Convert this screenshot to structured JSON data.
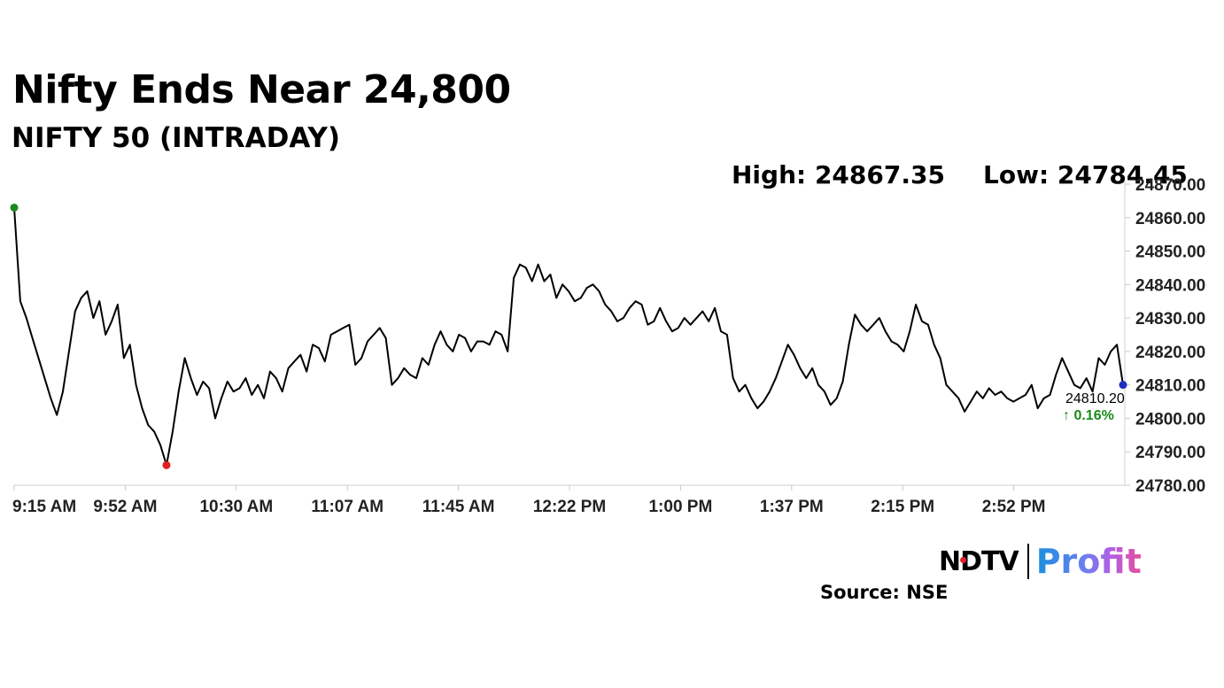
{
  "header": {
    "title": "Nifty Ends Near 24,800",
    "subtitle": "NIFTY 50 (INTRADAY)",
    "high_label": "High: 24867.35",
    "low_label": "Low: 24784.45"
  },
  "footer": {
    "brand_ndtv": "NDTV",
    "brand_profit": "Profit",
    "source": "Source: NSE"
  },
  "chart_data": {
    "type": "line",
    "series": [
      {
        "values": [
          24863,
          24835,
          24830,
          24824,
          24818,
          24812,
          24806,
          24801,
          24808,
          24820,
          24832,
          24836,
          24838,
          24830,
          24835,
          24825,
          24829,
          24834,
          24818,
          24822,
          24810,
          24803,
          24798,
          24796,
          24792,
          24786,
          24796,
          24808,
          24818,
          24812,
          24807,
          24811,
          24809,
          24800,
          24806,
          24811,
          24808,
          24809,
          24812,
          24807,
          24810,
          24806,
          24814,
          24812,
          24808,
          24815,
          24817,
          24819,
          24814,
          24822,
          24821,
          24817,
          24825,
          24826,
          24827,
          24828,
          24816,
          24818,
          24823,
          24825,
          24827,
          24824,
          24810,
          24812,
          24815,
          24813,
          24812,
          24818,
          24816,
          24822,
          24826,
          24822,
          24820,
          24825,
          24824,
          24820,
          24823,
          24823,
          24822,
          24826,
          24825,
          24820,
          24842,
          24846,
          24845,
          24841,
          24846,
          24841,
          24843,
          24836,
          24840,
          24838,
          24835,
          24836,
          24839,
          24840,
          24838,
          24834,
          24832,
          24829,
          24830,
          24833,
          24835,
          24834,
          24828,
          24829,
          24833,
          24829,
          24826,
          24827,
          24830,
          24828,
          24830,
          24832,
          24829,
          24833,
          24826,
          24825,
          24812,
          24808,
          24810,
          24806,
          24803,
          24805,
          24808,
          24812,
          24817,
          24822,
          24819,
          24815,
          24812,
          24815,
          24810,
          24808,
          24804,
          24806,
          24811,
          24822,
          24831,
          24828,
          24826,
          24828,
          24830,
          24826,
          24823,
          24822,
          24820,
          24826,
          24834,
          24829,
          24828,
          24822,
          24818,
          24810,
          24808,
          24806,
          24802,
          24805,
          24808,
          24806,
          24809,
          24807,
          24808,
          24806,
          24805,
          24806,
          24807,
          24810,
          24803,
          24806,
          24807,
          24813,
          24818,
          24814,
          24810,
          24809,
          24812,
          24808,
          24818,
          24816,
          24820,
          24822,
          24810
        ]
      }
    ],
    "x_ticks": [
      "9:15 AM",
      "9:52 AM",
      "10:30 AM",
      "11:07 AM",
      "11:45 AM",
      "12:22 PM",
      "1:00 PM",
      "1:37 PM",
      "2:15 PM",
      "2:52 PM"
    ],
    "y_ticks": [
      "24780.00",
      "24790.00",
      "24800.00",
      "24810.00",
      "24820.00",
      "24830.00",
      "24840.00",
      "24850.00",
      "24860.00",
      "24870.00"
    ],
    "ylim": [
      24780,
      24870
    ],
    "annotations": {
      "close_value": "24810.20",
      "change": "↑ 0.16%"
    },
    "markers": {
      "open_color": "#1a8a1a",
      "low_color": "#e02020",
      "close_color": "#1f2fbf"
    },
    "line_color": "#000000",
    "change_color": "#1a8a1a",
    "grid": false
  }
}
